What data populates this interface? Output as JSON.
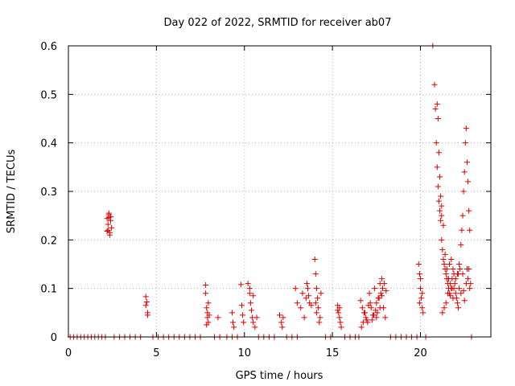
{
  "chart_data": {
    "type": "scatter",
    "title": "Day 022 of 2022, SRMTID for receiver ab07",
    "xlabel": "GPS time / hours",
    "ylabel": "SRMTID / TECUs",
    "xlim": [
      0,
      24
    ],
    "ylim": [
      0,
      0.6
    ],
    "xticks": [
      "0",
      "5",
      "10",
      "15",
      "20"
    ],
    "yticks": [
      "0",
      "0.1",
      "0.2",
      "0.3",
      "0.4",
      "0.5",
      "0.6"
    ],
    "grid": true,
    "marker": "plus",
    "color": "#dd0000",
    "series": [
      {
        "name": "SRMTID",
        "x": [
          0.1,
          0.3,
          0.5,
          0.7,
          0.9,
          1.1,
          1.3,
          1.5,
          1.7,
          1.9,
          2.1,
          2.6,
          2.9,
          3.2,
          3.5,
          3.8,
          4.1,
          4.8,
          5.1,
          5.4,
          5.7,
          6.0,
          6.3,
          6.6,
          6.9,
          7.2,
          7.5,
          8.3,
          8.6,
          9.0,
          9.3,
          9.6,
          10.8,
          11.1,
          11.4,
          11.7,
          12.4,
          12.7,
          13.0,
          14.6,
          14.9,
          15.7,
          16.0,
          16.3,
          16.5,
          18.3,
          18.6,
          18.9,
          19.2,
          19.5,
          19.8,
          20.3,
          22.9,
          2.2,
          2.25,
          2.3,
          2.35,
          2.4,
          2.45,
          2.25,
          2.3,
          2.35,
          2.4,
          2.2,
          2.3,
          4.4,
          4.45,
          4.5,
          4.4,
          4.5,
          7.8,
          7.85,
          7.9,
          7.95,
          7.8,
          7.9,
          7.85,
          8.0,
          7.95,
          8.5,
          9.3,
          9.35,
          9.4,
          9.8,
          9.85,
          9.9,
          9.95,
          10.2,
          10.3,
          10.35,
          10.4,
          10.45,
          10.5,
          10.6,
          10.7,
          10.3,
          10.5,
          12.0,
          12.1,
          12.15,
          12.2,
          12.9,
          13.0,
          13.2,
          13.3,
          13.4,
          13.5,
          13.6,
          13.7,
          13.8,
          13.55,
          13.65,
          14.0,
          14.05,
          14.1,
          14.15,
          14.2,
          14.3,
          14.1,
          14.25,
          14.05,
          14.35,
          15.3,
          15.35,
          15.4,
          15.45,
          15.5,
          15.3,
          15.4,
          16.6,
          16.7,
          16.8,
          16.9,
          17.0,
          17.1,
          17.2,
          17.3,
          17.4,
          17.5,
          17.6,
          17.7,
          17.8,
          17.9,
          18.0,
          16.75,
          16.85,
          17.05,
          17.25,
          17.45,
          17.65,
          17.85,
          17.15,
          17.35,
          17.55,
          17.75,
          17.95,
          16.65,
          16.95,
          17.5,
          17.7,
          17.8,
          18.05,
          19.9,
          19.95,
          20.0,
          20.05,
          20.1,
          20.15,
          20.0,
          20.1,
          19.95,
          20.7,
          20.8,
          20.85,
          20.9,
          20.95,
          21.0,
          21.05,
          21.1,
          21.15,
          21.2,
          21.25,
          21.3,
          21.35,
          21.4,
          21.45,
          21.5,
          21.55,
          21.6,
          21.65,
          21.7,
          21.75,
          21.8,
          21.85,
          21.9,
          21.95,
          22.0,
          22.05,
          22.1,
          22.15,
          22.2,
          22.25,
          22.3,
          22.35,
          22.4,
          22.45,
          22.5,
          22.55,
          22.6,
          22.65,
          22.7,
          22.75,
          22.8,
          21.0,
          21.05,
          21.1,
          21.15,
          21.2,
          21.3,
          21.4,
          21.5,
          21.6,
          21.8,
          22.0,
          22.2,
          22.4,
          22.6,
          22.7,
          22.75,
          22.8,
          22.85,
          21.25,
          21.35,
          21.45,
          21.55,
          21.65,
          21.75,
          21.85,
          22.1,
          22.3,
          22.5,
          22.65,
          20.95,
          21.2,
          21.7,
          21.9,
          22.15,
          22.45
        ],
        "y": [
          0,
          0,
          0,
          0,
          0,
          0,
          0,
          0,
          0,
          0,
          0,
          0,
          0,
          0,
          0,
          0,
          0,
          0,
          0,
          0,
          0,
          0,
          0,
          0,
          0,
          0,
          0,
          0,
          0,
          0,
          0,
          0,
          0,
          0,
          0,
          0,
          0,
          0,
          0,
          0,
          0,
          0,
          0,
          0,
          0,
          0,
          0,
          0,
          0,
          0,
          0,
          0,
          0,
          0.244,
          0.22,
          0.252,
          0.215,
          0.248,
          0.225,
          0.232,
          0.255,
          0.21,
          0.24,
          0.218,
          0.246,
          0.083,
          0.072,
          0.05,
          0.065,
          0.045,
          0.107,
          0.06,
          0.04,
          0.03,
          0.09,
          0.05,
          0.025,
          0.045,
          0.07,
          0.04,
          0.05,
          0.03,
          0.02,
          0.108,
          0.065,
          0.045,
          0.03,
          0.11,
          0.09,
          0.07,
          0.055,
          0.04,
          0.03,
          0.02,
          0.04,
          0.1,
          0.085,
          0.045,
          0.03,
          0.02,
          0.04,
          0.1,
          0.07,
          0.06,
          0.09,
          0.04,
          0.08,
          0.1,
          0.07,
          0.065,
          0.11,
          0.085,
          0.16,
          0.13,
          0.1,
          0.08,
          0.06,
          0.04,
          0.05,
          0.03,
          0.07,
          0.09,
          0.065,
          0.05,
          0.04,
          0.03,
          0.02,
          0.055,
          0.06,
          0.075,
          0.06,
          0.05,
          0.04,
          0.03,
          0.09,
          0.06,
          0.045,
          0.1,
          0.07,
          0.08,
          0.11,
          0.12,
          0.06,
          0.04,
          0.03,
          0.05,
          0.065,
          0.035,
          0.055,
          0.08,
          0.1,
          0.07,
          0.045,
          0.05,
          0.09,
          0.11,
          0.02,
          0.035,
          0.04,
          0.06,
          0.085,
          0.095,
          0.15,
          0.13,
          0.1,
          0.08,
          0.06,
          0.05,
          0.12,
          0.09,
          0.07,
          0.6,
          0.52,
          0.47,
          0.4,
          0.35,
          0.31,
          0.28,
          0.26,
          0.24,
          0.2,
          0.18,
          0.16,
          0.15,
          0.14,
          0.13,
          0.12,
          0.11,
          0.1,
          0.09,
          0.085,
          0.1,
          0.12,
          0.14,
          0.13,
          0.11,
          0.09,
          0.08,
          0.07,
          0.06,
          0.1,
          0.14,
          0.19,
          0.22,
          0.25,
          0.3,
          0.34,
          0.4,
          0.43,
          0.36,
          0.32,
          0.26,
          0.22,
          0.45,
          0.38,
          0.33,
          0.29,
          0.25,
          0.23,
          0.17,
          0.14,
          0.12,
          0.1,
          0.12,
          0.15,
          0.13,
          0.11,
          0.12,
          0.14,
          0.1,
          0.11,
          0.05,
          0.06,
          0.07,
          0.09,
          0.15,
          0.16,
          0.08,
          0.13,
          0.09,
          0.075,
          0.14,
          0.48,
          0.27,
          0.11,
          0.1,
          0.13,
          0.095
        ]
      }
    ]
  }
}
